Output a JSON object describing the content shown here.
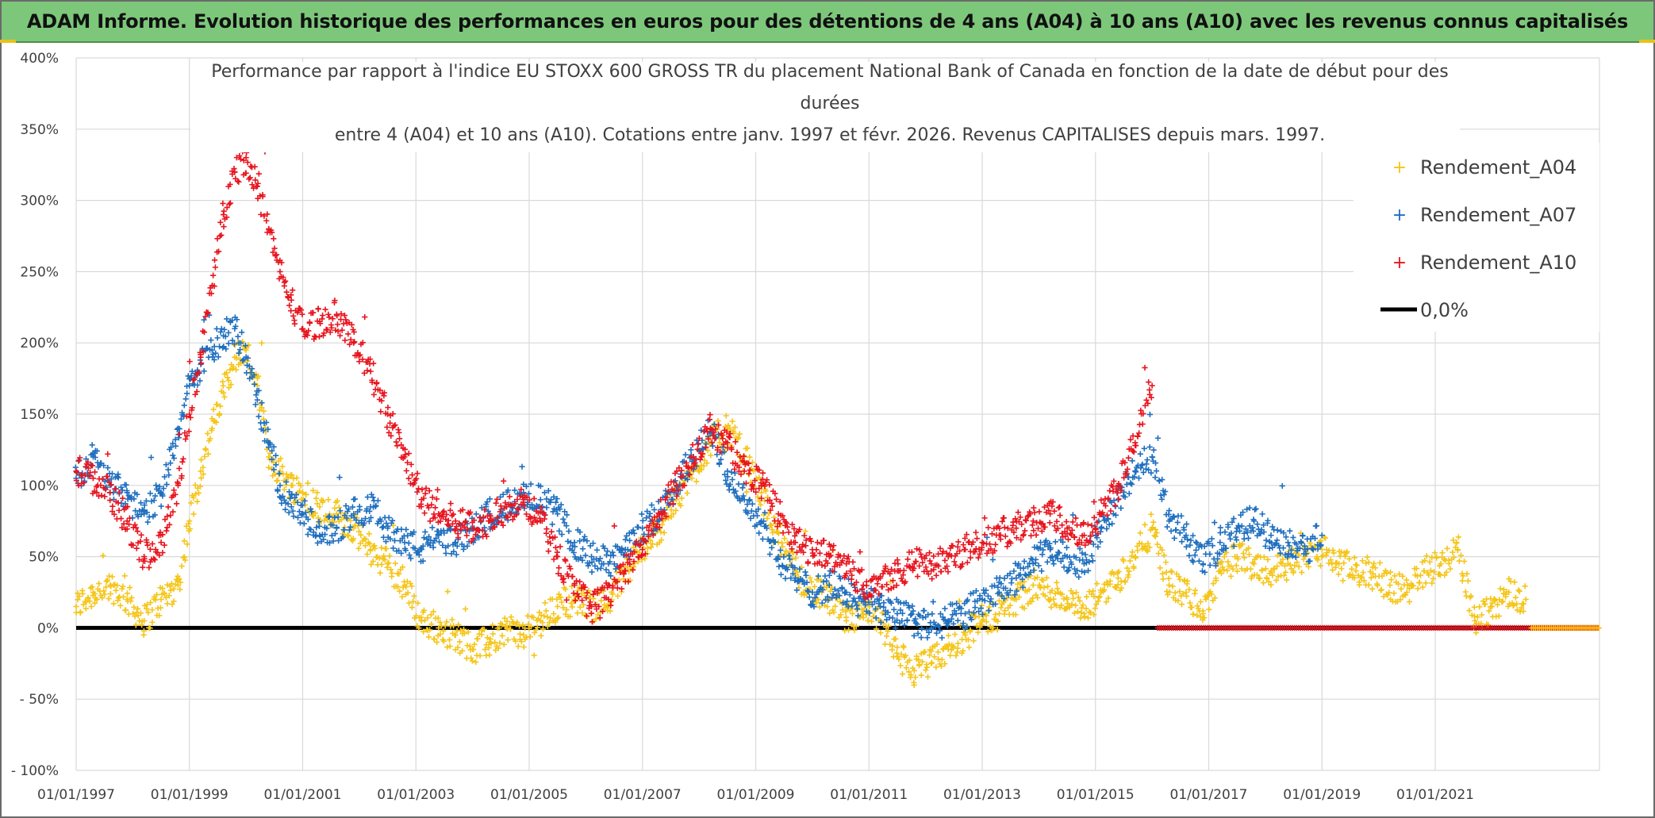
{
  "header": {
    "banner": "ADAM Informe. Evolution historique des performances en euros pour des détentions de 4 ans (A04) à 10 ans (A10) avec les revenus connus capitalisés"
  },
  "colors": {
    "banner_bg": "#7dc77b",
    "series_A04": "#f5c518",
    "series_A07": "#1f6fbf",
    "series_A10": "#e8141e",
    "zero_line": "#000000",
    "grid": "#d9d9d9"
  },
  "chart_data": {
    "type": "scatter",
    "title_lines": [
      "Performance par rapport à l'indice EU STOXX 600 GROSS TR  du placement National Bank of Canada en fonction de la date de début pour des",
      "durées",
      "entre 4 (A04) et 10 ans (A10). Cotations entre janv. 1997 et févr. 2026. Revenus CAPITALISES depuis mars. 1997."
    ],
    "xlabel": "",
    "ylabel": "",
    "xlim": [
      1997.0,
      2023.9
    ],
    "ylim": [
      -100,
      400
    ],
    "yticks": [
      -100,
      -50,
      0,
      50,
      100,
      150,
      200,
      250,
      300,
      350,
      400
    ],
    "ytick_labels": [
      "- 100%",
      "- 50%",
      "0%",
      "50%",
      "100%",
      "150%",
      "200%",
      "250%",
      "300%",
      "350%",
      "400%"
    ],
    "xticks": [
      1997,
      1999,
      2001,
      2003,
      2005,
      2007,
      2009,
      2011,
      2013,
      2015,
      2017,
      2019,
      2021
    ],
    "xtick_labels": [
      "01/01/1997",
      "01/01/1999",
      "01/01/2001",
      "01/01/2003",
      "01/01/2005",
      "01/01/2007",
      "01/01/2009",
      "01/01/2011",
      "01/01/2013",
      "01/01/2015",
      "01/01/2017",
      "01/01/2019",
      "01/01/2021"
    ],
    "grid": true,
    "legend_position": "top-right",
    "series": [
      {
        "name": "Rendement_A04",
        "marker": "plus",
        "x": [
          1997.0,
          1997.3,
          1997.6,
          1997.9,
          1998.2,
          1998.5,
          1998.8,
          1999.0,
          1999.2,
          1999.4,
          1999.6,
          1999.8,
          2000.0,
          2000.2,
          2000.4,
          2000.6,
          2000.8,
          2001.0,
          2001.3,
          2001.6,
          2001.9,
          2002.2,
          2002.5,
          2002.8,
          2003.1,
          2003.4,
          2003.7,
          2004.0,
          2004.3,
          2004.6,
          2004.9,
          2005.2,
          2005.5,
          2005.8,
          2006.1,
          2006.4,
          2006.7,
          2007.0,
          2007.3,
          2007.6,
          2007.9,
          2008.2,
          2008.5,
          2008.8,
          2009.1,
          2009.4,
          2009.7,
          2010.0,
          2010.3,
          2010.6,
          2010.9,
          2011.2,
          2011.5,
          2011.8,
          2012.1,
          2012.4,
          2012.7,
          2013.0,
          2013.3,
          2013.6,
          2013.9,
          2014.2,
          2014.5,
          2014.8,
          2015.1,
          2015.4,
          2015.7,
          2016.0,
          2016.3,
          2016.6,
          2016.9,
          2017.2,
          2017.5,
          2017.8,
          2018.1,
          2018.4,
          2018.7,
          2019.0,
          2019.3,
          2019.6,
          2019.9,
          2020.2,
          2020.5,
          2020.8,
          2021.1,
          2021.4,
          2021.7,
          2022.0,
          2022.3,
          2022.6
        ],
        "y": [
          15,
          25,
          30,
          20,
          5,
          20,
          30,
          75,
          110,
          140,
          165,
          190,
          195,
          170,
          120,
          110,
          100,
          95,
          85,
          80,
          70,
          55,
          45,
          30,
          5,
          0,
          -5,
          -15,
          -10,
          0,
          -5,
          5,
          15,
          20,
          15,
          20,
          40,
          55,
          70,
          90,
          110,
          130,
          140,
          120,
          95,
          60,
          40,
          25,
          20,
          5,
          10,
          5,
          -20,
          -30,
          -25,
          -15,
          -5,
          5,
          10,
          20,
          30,
          25,
          20,
          10,
          25,
          35,
          50,
          70,
          30,
          25,
          10,
          40,
          50,
          45,
          40,
          45,
          50,
          55,
          45,
          40,
          38,
          30,
          25,
          40,
          45,
          55,
          5,
          15,
          25,
          20
        ]
      },
      {
        "name": "Rendement_A07",
        "marker": "plus",
        "x": [
          1997.0,
          1997.3,
          1997.6,
          1997.9,
          1998.2,
          1998.5,
          1998.8,
          1999.0,
          1999.2,
          1999.4,
          1999.6,
          1999.8,
          2000.0,
          2000.2,
          2000.4,
          2000.6,
          2000.8,
          2001.0,
          2001.3,
          2001.6,
          2001.9,
          2002.2,
          2002.5,
          2002.8,
          2003.1,
          2003.4,
          2003.7,
          2004.0,
          2004.3,
          2004.6,
          2004.9,
          2005.2,
          2005.5,
          2005.8,
          2006.1,
          2006.4,
          2006.7,
          2007.0,
          2007.3,
          2007.6,
          2007.9,
          2008.2,
          2008.5,
          2008.8,
          2009.1,
          2009.4,
          2009.7,
          2010.0,
          2010.3,
          2010.6,
          2010.9,
          2011.2,
          2011.5,
          2011.8,
          2012.1,
          2012.4,
          2012.7,
          2013.0,
          2013.3,
          2013.6,
          2013.9,
          2014.2,
          2014.5,
          2014.8,
          2015.1,
          2015.4,
          2015.7,
          2016.0,
          2016.3,
          2016.6,
          2016.9,
          2017.2,
          2017.5,
          2017.8,
          2018.1,
          2018.4,
          2018.7,
          2019.0
        ],
        "y": [
          105,
          120,
          100,
          95,
          80,
          95,
          140,
          170,
          185,
          195,
          205,
          210,
          190,
          160,
          130,
          100,
          85,
          80,
          65,
          70,
          80,
          85,
          70,
          60,
          55,
          65,
          60,
          70,
          80,
          85,
          95,
          90,
          80,
          60,
          50,
          45,
          55,
          70,
          80,
          100,
          120,
          140,
          110,
          90,
          75,
          50,
          35,
          25,
          30,
          25,
          20,
          15,
          10,
          5,
          0,
          5,
          10,
          20,
          25,
          35,
          45,
          55,
          50,
          45,
          70,
          90,
          110,
          120,
          75,
          65,
          45,
          60,
          70,
          75,
          65,
          60,
          55,
          65
        ]
      },
      {
        "name": "Rendement_A10",
        "marker": "plus",
        "x": [
          1997.0,
          1997.3,
          1997.6,
          1997.9,
          1998.2,
          1998.5,
          1998.8,
          1999.0,
          1999.2,
          1999.4,
          1999.6,
          1999.8,
          2000.0,
          2000.2,
          2000.4,
          2000.6,
          2000.8,
          2001.0,
          2001.3,
          2001.6,
          2001.9,
          2002.2,
          2002.5,
          2002.8,
          2003.1,
          2003.4,
          2003.7,
          2004.0,
          2004.3,
          2004.6,
          2004.9,
          2005.2,
          2005.5,
          2005.8,
          2006.1,
          2006.4,
          2006.7,
          2007.0,
          2007.3,
          2007.6,
          2007.9,
          2008.2,
          2008.5,
          2008.8,
          2009.1,
          2009.4,
          2009.7,
          2010.0,
          2010.3,
          2010.6,
          2010.9,
          2011.2,
          2011.5,
          2011.8,
          2012.1,
          2012.4,
          2012.7,
          2013.0,
          2013.3,
          2013.6,
          2013.9,
          2014.2,
          2014.5,
          2014.8,
          2015.1,
          2015.4,
          2015.7,
          2016.0
        ],
        "y": [
          110,
          105,
          95,
          75,
          50,
          60,
          100,
          150,
          190,
          240,
          290,
          320,
          330,
          310,
          280,
          250,
          230,
          210,
          215,
          220,
          200,
          180,
          150,
          120,
          90,
          80,
          75,
          70,
          75,
          85,
          90,
          75,
          50,
          30,
          15,
          20,
          40,
          55,
          80,
          100,
          120,
          140,
          130,
          110,
          100,
          80,
          60,
          55,
          50,
          45,
          30,
          35,
          40,
          45,
          45,
          50,
          55,
          60,
          65,
          70,
          75,
          80,
          70,
          65,
          80,
          100,
          130,
          170
        ]
      },
      {
        "name": "0,0%",
        "marker": "line",
        "x": [
          1997.0,
          2023.9
        ],
        "y": [
          0,
          0
        ]
      }
    ],
    "zero_marker_segments": [
      {
        "series": "Rendement_A10",
        "x_start": 2016.1,
        "x_end": 2023.9
      },
      {
        "series": "Rendement_A04",
        "x_start": 2022.7,
        "x_end": 2023.9
      }
    ],
    "legend": [
      "Rendement_A04",
      "Rendement_A07",
      "Rendement_A10",
      "0,0%"
    ]
  }
}
